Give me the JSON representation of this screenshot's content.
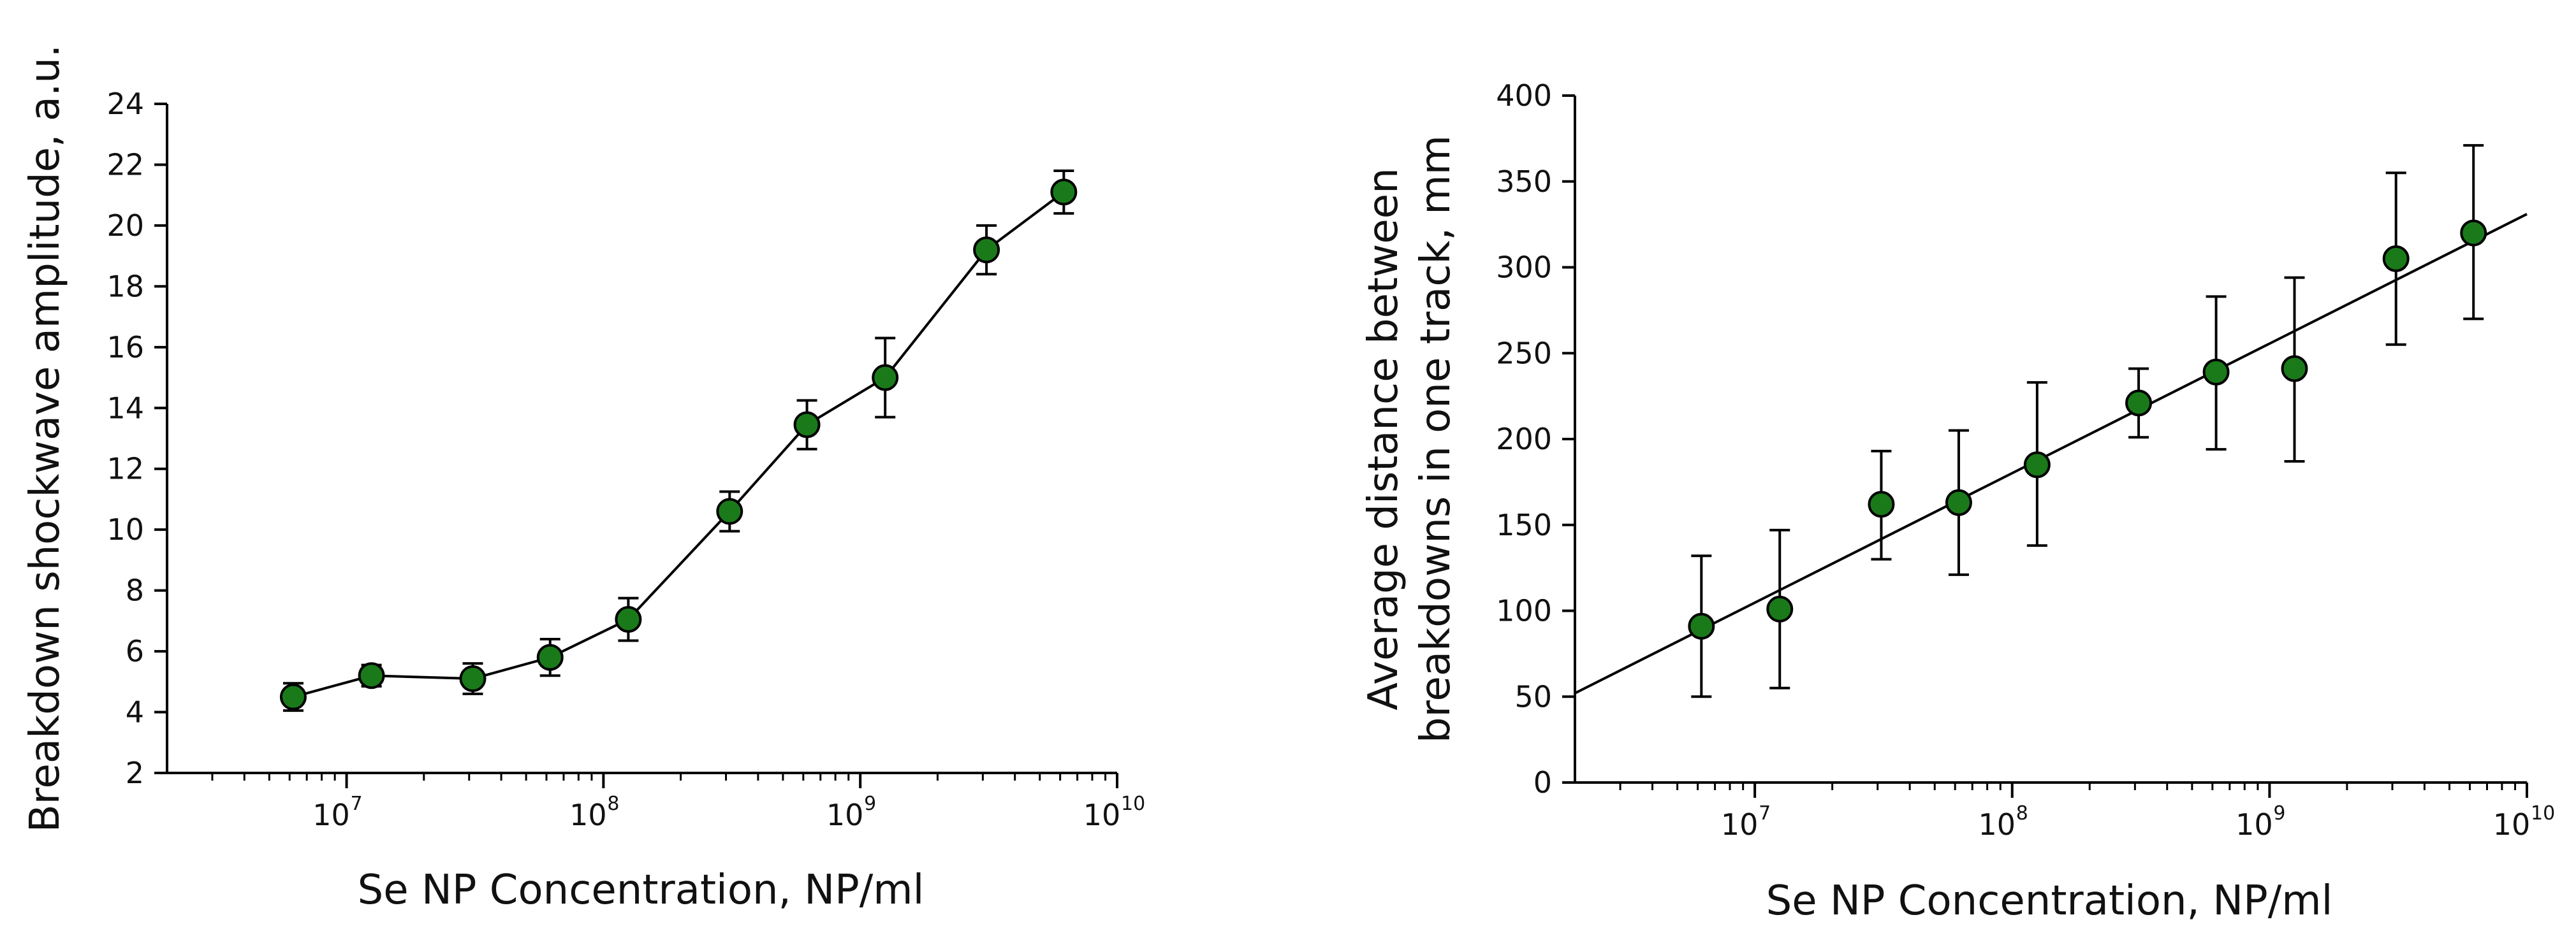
{
  "chart_data": [
    {
      "type": "line",
      "xscale": "log",
      "xlabel": "Se NP Concentration, NP/ml",
      "ylabel": "Breakdown shockwave amplitude, a.u.",
      "xlim": [
        2000000,
        10000000000
      ],
      "ylim": [
        2,
        24
      ],
      "yticks": [
        "2",
        "4",
        "6",
        "8",
        "10",
        "12",
        "14",
        "16",
        "18",
        "20",
        "22",
        "24"
      ],
      "xticks": [
        {
          "base": "10",
          "exp": "7"
        },
        {
          "base": "10",
          "exp": "8"
        },
        {
          "base": "10",
          "exp": "9"
        },
        {
          "base": "10",
          "exp": "10"
        }
      ],
      "marker_color": "#1a7a1a",
      "series": [
        {
          "name": "amplitude",
          "x": [
            6200000,
            12500000,
            31000000,
            62000000,
            125000000,
            310000000,
            620000000,
            1250000000,
            3100000000,
            6200000000
          ],
          "y": [
            4.5,
            5.2,
            5.1,
            5.8,
            7.05,
            10.6,
            13.45,
            15.0,
            19.2,
            21.1
          ],
          "err": [
            0.45,
            0.35,
            0.5,
            0.6,
            0.7,
            0.65,
            0.8,
            1.3,
            0.8,
            0.7
          ]
        }
      ]
    },
    {
      "type": "scatter",
      "xscale": "log",
      "xlabel": "Se NP Concentration, NP/ml",
      "ylabel": "Average distance between breakdowns in one track, mm",
      "ylabel_lines": [
        "Average distance between",
        "breakdowns in one track, mm"
      ],
      "xlim": [
        2000000,
        10000000000
      ],
      "ylim": [
        0,
        400
      ],
      "yticks": [
        "0",
        "50",
        "100",
        "150",
        "200",
        "250",
        "300",
        "350",
        "400"
      ],
      "xticks": [
        {
          "base": "10",
          "exp": "7"
        },
        {
          "base": "10",
          "exp": "8"
        },
        {
          "base": "10",
          "exp": "9"
        },
        {
          "base": "10",
          "exp": "10"
        }
      ],
      "marker_color": "#1a7a1a",
      "series": [
        {
          "name": "distance",
          "x": [
            6200000,
            12500000,
            31000000,
            62000000,
            125000000,
            310000000,
            620000000,
            1250000000,
            3100000000,
            6200000000
          ],
          "y": [
            91,
            101,
            162,
            163,
            185,
            221,
            239,
            241,
            305,
            320
          ],
          "err_low": [
            41,
            46,
            32,
            42,
            47,
            20,
            45,
            54,
            50,
            50
          ],
          "err_high": [
            41,
            46,
            31,
            42,
            48,
            20,
            44,
            53,
            50,
            51
          ]
        }
      ],
      "fit_line": {
        "x": [
          2000000,
          10000000000
        ],
        "y": [
          52,
          331
        ]
      }
    }
  ]
}
